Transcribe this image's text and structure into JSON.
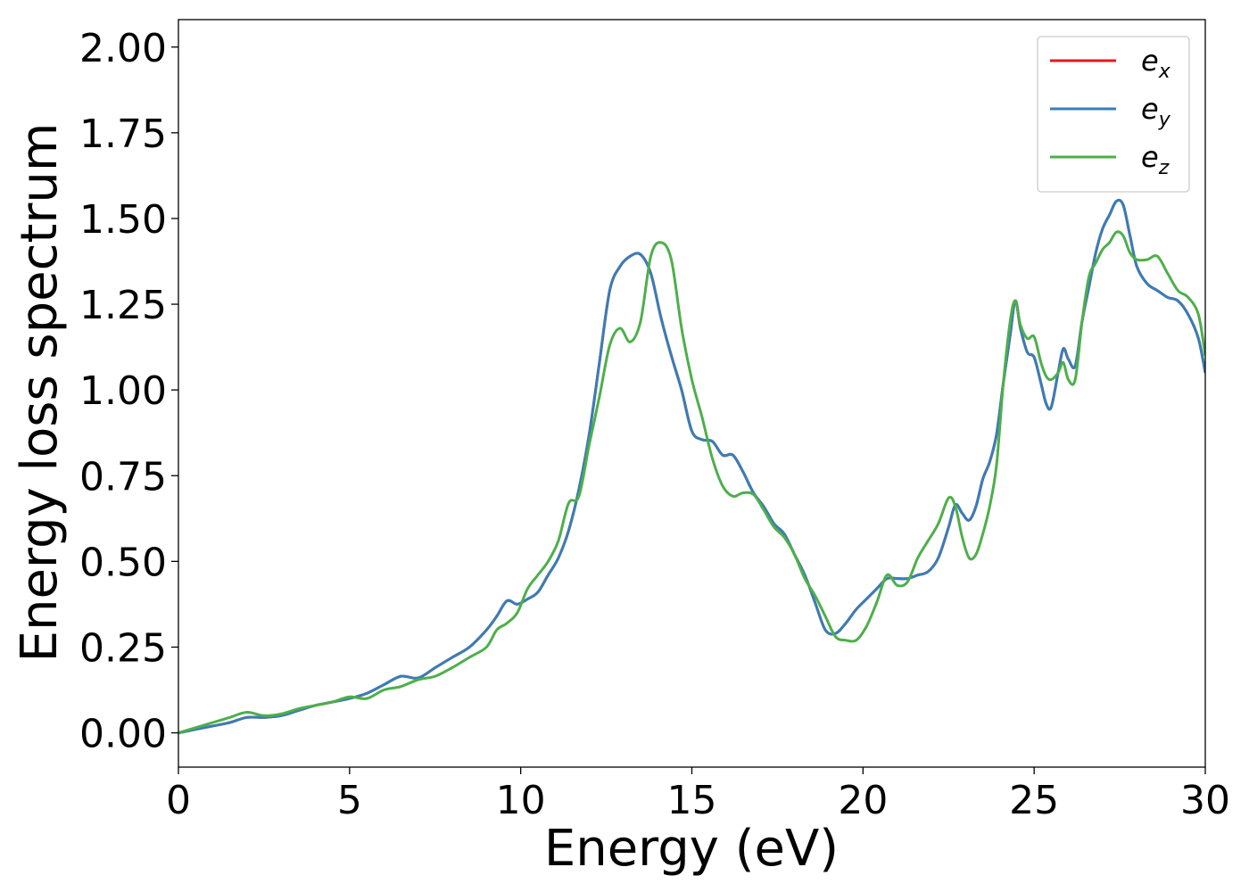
{
  "chart_data": {
    "type": "line",
    "xlabel": "Energy (eV)",
    "ylabel": "Energy loss spectrum",
    "xlim": [
      0,
      30
    ],
    "ylim": [
      -0.1,
      2.08
    ],
    "xticks": [
      0,
      5,
      10,
      15,
      20,
      25,
      30
    ],
    "xtick_labels": [
      "0",
      "5",
      "10",
      "15",
      "20",
      "25",
      "30"
    ],
    "yticks": [
      0,
      0.25,
      0.5,
      0.75,
      1.0,
      1.25,
      1.5,
      1.75,
      2.0
    ],
    "ytick_labels": [
      "0.00",
      "0.25",
      "0.50",
      "0.75",
      "1.00",
      "1.25",
      "1.50",
      "1.75",
      "2.00"
    ],
    "grid": false,
    "legend_position": "top-right",
    "series": [
      {
        "name": "e_x",
        "legend_base": "e",
        "legend_sub": "x",
        "color": "#e41a1c",
        "x": [
          0,
          0.5,
          1,
          1.5,
          2,
          2.5,
          3,
          3.5,
          4,
          4.5,
          5,
          5.5,
          6,
          6.5,
          7,
          7.5,
          8,
          8.5,
          9,
          9.3,
          9.6,
          9.9,
          10.2,
          10.5,
          10.8,
          11.1,
          11.4,
          11.7,
          12,
          12.3,
          12.6,
          12.9,
          13.2,
          13.5,
          13.8,
          14.1,
          14.4,
          14.7,
          15,
          15.3,
          15.6,
          15.9,
          16.2,
          16.5,
          16.8,
          17.1,
          17.4,
          17.7,
          18,
          18.3,
          18.6,
          18.9,
          19.2,
          19.5,
          19.8,
          20.1,
          20.4,
          20.7,
          21,
          21.3,
          21.6,
          21.9,
          22.2,
          22.5,
          22.7,
          22.9,
          23.1,
          23.3,
          23.5,
          23.7,
          23.9,
          24.1,
          24.3,
          24.45,
          24.6,
          24.8,
          25,
          25.2,
          25.35,
          25.5,
          25.7,
          25.85,
          26,
          26.2,
          26.4,
          26.6,
          26.8,
          27,
          27.2,
          27.4,
          27.6,
          27.8,
          28,
          28.3,
          28.6,
          28.9,
          29.2,
          29.5,
          29.8,
          30
        ],
        "values": [
          0,
          0.01,
          0.02,
          0.03,
          0.045,
          0.045,
          0.05,
          0.065,
          0.08,
          0.09,
          0.1,
          0.115,
          0.14,
          0.165,
          0.16,
          0.19,
          0.22,
          0.25,
          0.3,
          0.34,
          0.385,
          0.375,
          0.39,
          0.41,
          0.46,
          0.51,
          0.59,
          0.71,
          0.87,
          1.08,
          1.29,
          1.36,
          1.39,
          1.395,
          1.34,
          1.21,
          1.1,
          1.0,
          0.88,
          0.855,
          0.85,
          0.81,
          0.81,
          0.76,
          0.7,
          0.66,
          0.61,
          0.58,
          0.52,
          0.46,
          0.38,
          0.3,
          0.29,
          0.32,
          0.36,
          0.39,
          0.42,
          0.45,
          0.45,
          0.45,
          0.46,
          0.47,
          0.51,
          0.6,
          0.665,
          0.64,
          0.62,
          0.66,
          0.74,
          0.79,
          0.87,
          1.02,
          1.16,
          1.26,
          1.18,
          1.11,
          1.095,
          1.02,
          0.96,
          0.95,
          1.05,
          1.12,
          1.09,
          1.07,
          1.2,
          1.3,
          1.4,
          1.47,
          1.51,
          1.55,
          1.54,
          1.45,
          1.36,
          1.31,
          1.29,
          1.27,
          1.26,
          1.22,
          1.15,
          1.05
        ]
      },
      {
        "name": "e_y",
        "legend_base": "e",
        "legend_sub": "y",
        "color": "#377eb8",
        "x": [
          0,
          0.5,
          1,
          1.5,
          2,
          2.5,
          3,
          3.5,
          4,
          4.5,
          5,
          5.5,
          6,
          6.5,
          7,
          7.5,
          8,
          8.5,
          9,
          9.3,
          9.6,
          9.9,
          10.2,
          10.5,
          10.8,
          11.1,
          11.4,
          11.7,
          12,
          12.3,
          12.6,
          12.9,
          13.2,
          13.5,
          13.8,
          14.1,
          14.4,
          14.7,
          15,
          15.3,
          15.6,
          15.9,
          16.2,
          16.5,
          16.8,
          17.1,
          17.4,
          17.7,
          18,
          18.3,
          18.6,
          18.9,
          19.2,
          19.5,
          19.8,
          20.1,
          20.4,
          20.7,
          21,
          21.3,
          21.6,
          21.9,
          22.2,
          22.5,
          22.7,
          22.9,
          23.1,
          23.3,
          23.5,
          23.7,
          23.9,
          24.1,
          24.3,
          24.45,
          24.6,
          24.8,
          25,
          25.2,
          25.35,
          25.5,
          25.7,
          25.85,
          26,
          26.2,
          26.4,
          26.6,
          26.8,
          27,
          27.2,
          27.4,
          27.6,
          27.8,
          28,
          28.3,
          28.6,
          28.9,
          29.2,
          29.5,
          29.8,
          30
        ],
        "values": [
          0,
          0.01,
          0.02,
          0.03,
          0.045,
          0.045,
          0.05,
          0.065,
          0.08,
          0.09,
          0.1,
          0.115,
          0.14,
          0.165,
          0.16,
          0.19,
          0.22,
          0.25,
          0.3,
          0.34,
          0.385,
          0.375,
          0.39,
          0.41,
          0.46,
          0.51,
          0.59,
          0.71,
          0.87,
          1.08,
          1.29,
          1.36,
          1.39,
          1.395,
          1.34,
          1.21,
          1.1,
          1.0,
          0.88,
          0.855,
          0.85,
          0.81,
          0.81,
          0.76,
          0.7,
          0.66,
          0.61,
          0.58,
          0.52,
          0.46,
          0.38,
          0.3,
          0.29,
          0.32,
          0.36,
          0.39,
          0.42,
          0.45,
          0.45,
          0.45,
          0.46,
          0.47,
          0.51,
          0.6,
          0.665,
          0.64,
          0.62,
          0.66,
          0.74,
          0.79,
          0.87,
          1.02,
          1.16,
          1.26,
          1.18,
          1.11,
          1.095,
          1.02,
          0.96,
          0.95,
          1.05,
          1.12,
          1.09,
          1.07,
          1.2,
          1.3,
          1.4,
          1.47,
          1.51,
          1.55,
          1.54,
          1.45,
          1.36,
          1.31,
          1.29,
          1.27,
          1.26,
          1.22,
          1.15,
          1.05
        ]
      },
      {
        "name": "e_z",
        "legend_base": "e",
        "legend_sub": "z",
        "color": "#4daf4a",
        "x": [
          0,
          0.5,
          1,
          1.5,
          2,
          2.5,
          3,
          3.5,
          4,
          4.5,
          5,
          5.5,
          6,
          6.5,
          7,
          7.5,
          8,
          8.5,
          9,
          9.3,
          9.6,
          9.9,
          10.2,
          10.5,
          10.8,
          11.1,
          11.4,
          11.7,
          12,
          12.3,
          12.6,
          12.9,
          13.2,
          13.5,
          13.8,
          14.1,
          14.4,
          14.7,
          15,
          15.3,
          15.6,
          15.9,
          16.2,
          16.5,
          16.8,
          17.1,
          17.4,
          17.7,
          18,
          18.3,
          18.6,
          18.9,
          19.2,
          19.5,
          19.8,
          20.1,
          20.4,
          20.7,
          21,
          21.3,
          21.6,
          21.9,
          22.2,
          22.5,
          22.7,
          22.9,
          23.1,
          23.3,
          23.5,
          23.7,
          23.9,
          24.1,
          24.3,
          24.45,
          24.6,
          24.8,
          25,
          25.2,
          25.35,
          25.5,
          25.7,
          25.85,
          26,
          26.2,
          26.4,
          26.6,
          26.8,
          27,
          27.2,
          27.4,
          27.6,
          27.8,
          28,
          28.3,
          28.6,
          28.9,
          29.2,
          29.5,
          29.8,
          30
        ],
        "values": [
          0,
          0.015,
          0.03,
          0.045,
          0.06,
          0.05,
          0.055,
          0.07,
          0.08,
          0.09,
          0.105,
          0.1,
          0.125,
          0.135,
          0.155,
          0.165,
          0.19,
          0.22,
          0.25,
          0.3,
          0.32,
          0.35,
          0.42,
          0.46,
          0.5,
          0.56,
          0.67,
          0.69,
          0.84,
          0.98,
          1.13,
          1.18,
          1.14,
          1.2,
          1.39,
          1.43,
          1.38,
          1.18,
          1.03,
          0.92,
          0.8,
          0.72,
          0.69,
          0.7,
          0.695,
          0.65,
          0.6,
          0.57,
          0.52,
          0.45,
          0.4,
          0.34,
          0.28,
          0.27,
          0.27,
          0.31,
          0.38,
          0.46,
          0.43,
          0.44,
          0.51,
          0.56,
          0.61,
          0.685,
          0.66,
          0.57,
          0.51,
          0.52,
          0.58,
          0.66,
          0.78,
          1.02,
          1.2,
          1.26,
          1.19,
          1.15,
          1.155,
          1.08,
          1.04,
          1.03,
          1.05,
          1.08,
          1.03,
          1.03,
          1.2,
          1.33,
          1.37,
          1.41,
          1.43,
          1.46,
          1.45,
          1.4,
          1.38,
          1.38,
          1.39,
          1.34,
          1.29,
          1.27,
          1.22,
          1.1
        ]
      }
    ]
  }
}
